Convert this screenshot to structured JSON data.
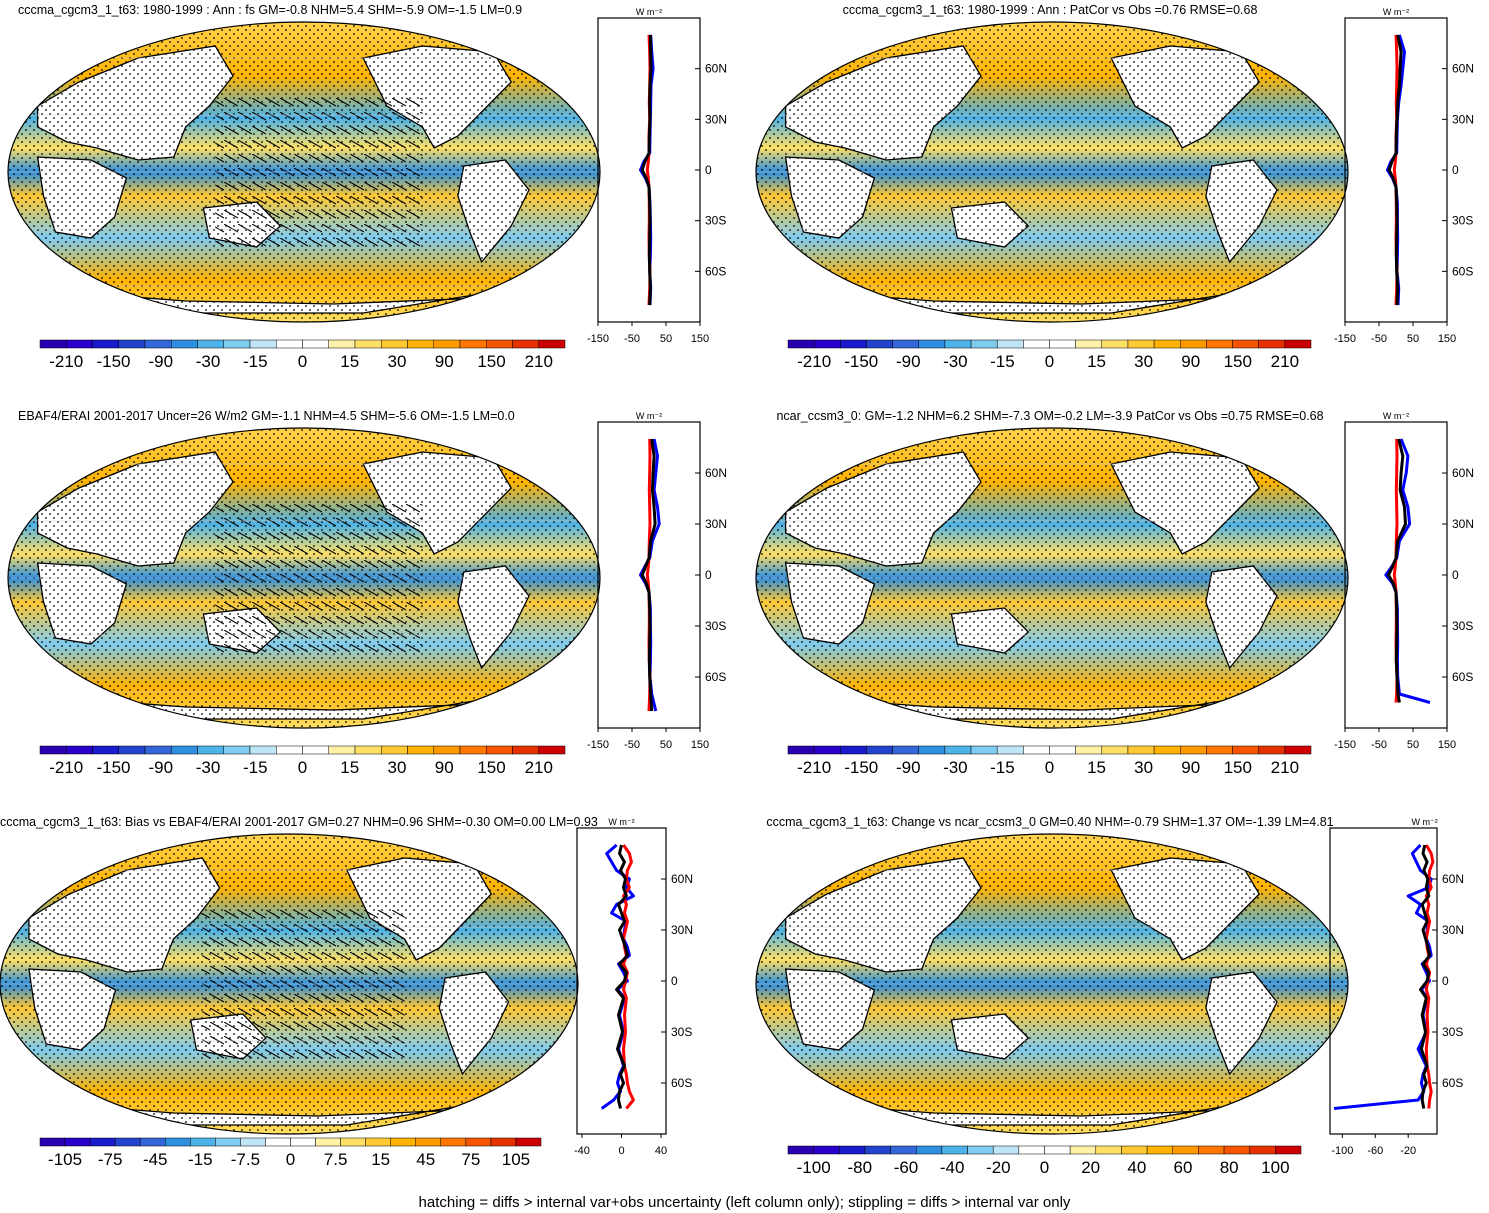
{
  "footer": "hatching = diffs > internal var+obs uncertainty (left column only); stippling = diffs > internal var only",
  "colors": {
    "bar_palette_pos": [
      "#ffffff",
      "#fff2a8",
      "#ffe066",
      "#ffc933",
      "#ffb300",
      "#ff9900",
      "#ff7700",
      "#f55400",
      "#e63000",
      "#cc0000"
    ],
    "bar_palette_neg": [
      "#ffffff",
      "#bfe6f7",
      "#80ccf0",
      "#4db3e8",
      "#2e8fe0",
      "#3366d9",
      "#2244cc",
      "#1a1acc",
      "#2a00cc",
      "#2b00b3"
    ],
    "land": "#ffffff",
    "coast": "#000000",
    "zonal_blue": "#0000ff",
    "zonal_red": "#ff0000",
    "zonal_black": "#000000"
  },
  "chart_data": [
    {
      "id": "p1",
      "type": "heatmap",
      "title": "cccma_cgcm3_1_t63: 1980-1999 : Ann : fs GM=-0.8 NHM=5.4 SHM=-5.9 OM=-1.5 LM=0.9",
      "colorbar_labels": [
        "-210",
        "-150",
        "-90",
        "-30",
        "-15",
        "0",
        "15",
        "30",
        "90",
        "150",
        "210"
      ],
      "zonal": {
        "units": "W m⁻²",
        "xticks": [
          "-150",
          "-50",
          "50",
          "150"
        ],
        "yticks": [
          "60N",
          "30N",
          "0",
          "30S",
          "60S"
        ],
        "xlim": [
          -150,
          150
        ],
        "lat": [
          80,
          70,
          60,
          50,
          40,
          30,
          20,
          10,
          5,
          0,
          -5,
          -10,
          -20,
          -30,
          -40,
          -50,
          -60,
          -70,
          -80
        ],
        "blue": [
          5,
          8,
          12,
          6,
          5,
          4,
          3,
          2,
          -15,
          -25,
          -10,
          0,
          3,
          4,
          5,
          4,
          2,
          5,
          3
        ],
        "red": [
          0,
          2,
          3,
          2,
          1,
          2,
          0,
          0,
          -2,
          -5,
          -2,
          0,
          1,
          1,
          0,
          1,
          3,
          2,
          0
        ],
        "black": [
          4,
          5,
          6,
          3,
          2,
          3,
          1,
          0,
          -12,
          -20,
          -8,
          0,
          2,
          3,
          2,
          1,
          2,
          4,
          2
        ]
      }
    },
    {
      "id": "p2",
      "type": "heatmap",
      "title": "cccma_cgcm3_1_t63: 1980-1999 : Ann : PatCor vs Obs =0.76 RMSE=0.68",
      "colorbar_labels": [
        "-210",
        "-150",
        "-90",
        "-30",
        "-15",
        "0",
        "15",
        "30",
        "90",
        "150",
        "210"
      ],
      "zonal": {
        "units": "W m⁻²",
        "xticks": [
          "-150",
          "-50",
          "50",
          "150"
        ],
        "yticks": [
          "60N",
          "30N",
          "0",
          "30S",
          "60S"
        ],
        "xlim": [
          -150,
          150
        ],
        "lat": [
          80,
          70,
          60,
          50,
          40,
          30,
          20,
          10,
          5,
          0,
          -5,
          -10,
          -20,
          -30,
          -40,
          -50,
          -60,
          -70,
          -80
        ],
        "blue": [
          10,
          25,
          20,
          15,
          8,
          4,
          3,
          2,
          -15,
          -25,
          -10,
          0,
          4,
          4,
          5,
          4,
          3,
          8,
          6
        ],
        "red": [
          0,
          2,
          3,
          2,
          1,
          2,
          0,
          0,
          -2,
          -5,
          -2,
          0,
          1,
          1,
          0,
          1,
          3,
          2,
          0
        ],
        "black": [
          5,
          15,
          12,
          10,
          5,
          3,
          1,
          0,
          -12,
          -20,
          -8,
          0,
          2,
          3,
          2,
          1,
          2,
          5,
          3
        ]
      }
    },
    {
      "id": "p3",
      "type": "heatmap",
      "title": "EBAF4/ERAI 2001-2017 Uncer=26 W/m2 GM=-1.1 NHM=4.5 SHM=-5.6 OM=-1.5 LM=0.0",
      "colorbar_labels": [
        "-210",
        "-150",
        "-90",
        "-30",
        "-15",
        "0",
        "15",
        "30",
        "90",
        "150",
        "210"
      ],
      "zonal": {
        "units": "W m⁻²",
        "xticks": [
          "-150",
          "-50",
          "50",
          "150"
        ],
        "yticks": [
          "60N",
          "30N",
          "0",
          "30S",
          "60S"
        ],
        "xlim": [
          -150,
          150
        ],
        "lat": [
          80,
          70,
          60,
          50,
          40,
          30,
          20,
          10,
          5,
          0,
          -5,
          -10,
          -20,
          -30,
          -40,
          -50,
          -60,
          -70,
          -80
        ],
        "blue": [
          15,
          25,
          20,
          15,
          25,
          30,
          10,
          2,
          -12,
          -25,
          -10,
          0,
          4,
          4,
          5,
          4,
          3,
          8,
          20
        ],
        "red": [
          2,
          3,
          2,
          1,
          2,
          3,
          1,
          0,
          -2,
          -5,
          -2,
          0,
          1,
          1,
          0,
          1,
          3,
          2,
          0
        ],
        "black": [
          8,
          15,
          12,
          10,
          15,
          18,
          5,
          0,
          -10,
          -20,
          -8,
          0,
          2,
          3,
          2,
          1,
          2,
          5,
          8
        ]
      }
    },
    {
      "id": "p4",
      "type": "heatmap",
      "title": "ncar_ccsm3_0: GM=-1.2 NHM=6.2 SHM=-7.3 OM=-0.2 LM=-3.9 PatCor vs Obs =0.75 RMSE=0.68",
      "colorbar_labels": [
        "-210",
        "-150",
        "-90",
        "-30",
        "-15",
        "0",
        "15",
        "30",
        "90",
        "150",
        "210"
      ],
      "zonal": {
        "units": "W m⁻²",
        "xticks": [
          "-150",
          "-50",
          "50",
          "150"
        ],
        "yticks": [
          "60N",
          "30N",
          "0",
          "30S",
          "60S"
        ],
        "xlim": [
          -150,
          150
        ],
        "lat": [
          80,
          70,
          60,
          50,
          40,
          30,
          20,
          10,
          5,
          0,
          -5,
          -10,
          -20,
          -30,
          -40,
          -50,
          -60,
          -70,
          -75
        ],
        "blue": [
          15,
          35,
          30,
          20,
          35,
          40,
          10,
          2,
          -12,
          -30,
          -10,
          0,
          4,
          4,
          5,
          4,
          5,
          10,
          100
        ],
        "red": [
          2,
          3,
          2,
          1,
          2,
          3,
          1,
          0,
          -2,
          -5,
          -2,
          0,
          1,
          1,
          0,
          1,
          3,
          2,
          0
        ],
        "black": [
          8,
          20,
          15,
          12,
          25,
          28,
          5,
          0,
          -10,
          -22,
          -8,
          0,
          2,
          3,
          2,
          1,
          3,
          6,
          10
        ]
      }
    },
    {
      "id": "p5",
      "type": "heatmap",
      "title": "cccma_cgcm3_1_t63: Bias vs EBAF4/ERAI 2001-2017 GM=0.27 NHM=0.96 SHM=-0.30 OM=0.00 LM=0.93",
      "colorbar_labels": [
        "-105",
        "-75",
        "-45",
        "-15",
        "-7.5",
        "0",
        "7.5",
        "15",
        "45",
        "75",
        "105"
      ],
      "zonal": {
        "units": "W m⁻²",
        "xticks": [
          "-40",
          "0",
          "40"
        ],
        "yticks": [
          "60N",
          "30N",
          "0",
          "30S",
          "60S"
        ],
        "xlim": [
          -45,
          45
        ],
        "lat": [
          80,
          75,
          70,
          65,
          60,
          55,
          50,
          45,
          40,
          35,
          30,
          25,
          20,
          15,
          10,
          5,
          0,
          -5,
          -10,
          -20,
          -30,
          -40,
          -50,
          -55,
          -60,
          -65,
          -70,
          -75
        ],
        "blue": [
          -5,
          -15,
          -10,
          -5,
          8,
          5,
          12,
          -5,
          -10,
          5,
          3,
          2,
          6,
          8,
          -3,
          2,
          6,
          -4,
          3,
          -2,
          2,
          -3,
          2,
          -2,
          -4,
          -1,
          -8,
          -20
        ],
        "red": [
          2,
          8,
          10,
          6,
          5,
          8,
          2,
          5,
          3,
          6,
          4,
          2,
          3,
          5,
          2,
          6,
          4,
          2,
          5,
          3,
          4,
          2,
          3,
          5,
          6,
          8,
          12,
          5
        ],
        "black": [
          0,
          -2,
          3,
          -1,
          4,
          2,
          5,
          -3,
          0,
          3,
          -2,
          1,
          4,
          6,
          -2,
          5,
          3,
          -5,
          2,
          -3,
          1,
          -4,
          3,
          -1,
          2,
          -2,
          -3,
          -1
        ]
      }
    },
    {
      "id": "p6",
      "type": "heatmap",
      "title": "cccma_cgcm3_1_t63: Change vs ncar_ccsm3_0 GM=0.40 NHM=-0.79 SHM=1.37 OM=-1.39 LM=4.81",
      "colorbar_labels": [
        "-100",
        "-80",
        "-60",
        "-40",
        "-20",
        "0",
        "20",
        "40",
        "60",
        "80",
        "100"
      ],
      "zonal": {
        "units": "W m⁻²",
        "xticks": [
          "-100",
          "-60",
          "-20"
        ],
        "yticks": [
          "60N",
          "30N",
          "0",
          "30S",
          "60S"
        ],
        "xlim": [
          -115,
          15
        ],
        "lat": [
          80,
          75,
          70,
          65,
          60,
          55,
          50,
          45,
          40,
          35,
          30,
          25,
          20,
          15,
          10,
          5,
          0,
          -5,
          -10,
          -20,
          -30,
          -40,
          -50,
          -55,
          -60,
          -65,
          -70,
          -75
        ],
        "blue": [
          -5,
          -15,
          -10,
          -5,
          8,
          5,
          -20,
          -5,
          -10,
          5,
          3,
          2,
          6,
          8,
          -3,
          2,
          6,
          -4,
          3,
          -2,
          2,
          -8,
          2,
          -2,
          -4,
          -1,
          -8,
          -110
        ],
        "red": [
          2,
          8,
          10,
          6,
          5,
          8,
          2,
          5,
          3,
          6,
          4,
          2,
          3,
          5,
          2,
          6,
          4,
          2,
          5,
          3,
          4,
          2,
          3,
          5,
          6,
          8,
          6,
          5
        ],
        "black": [
          0,
          -2,
          3,
          -1,
          4,
          2,
          5,
          -3,
          0,
          3,
          -2,
          1,
          4,
          6,
          -2,
          5,
          3,
          -5,
          2,
          -3,
          1,
          -4,
          3,
          -1,
          2,
          -2,
          -3,
          -1
        ]
      }
    }
  ]
}
